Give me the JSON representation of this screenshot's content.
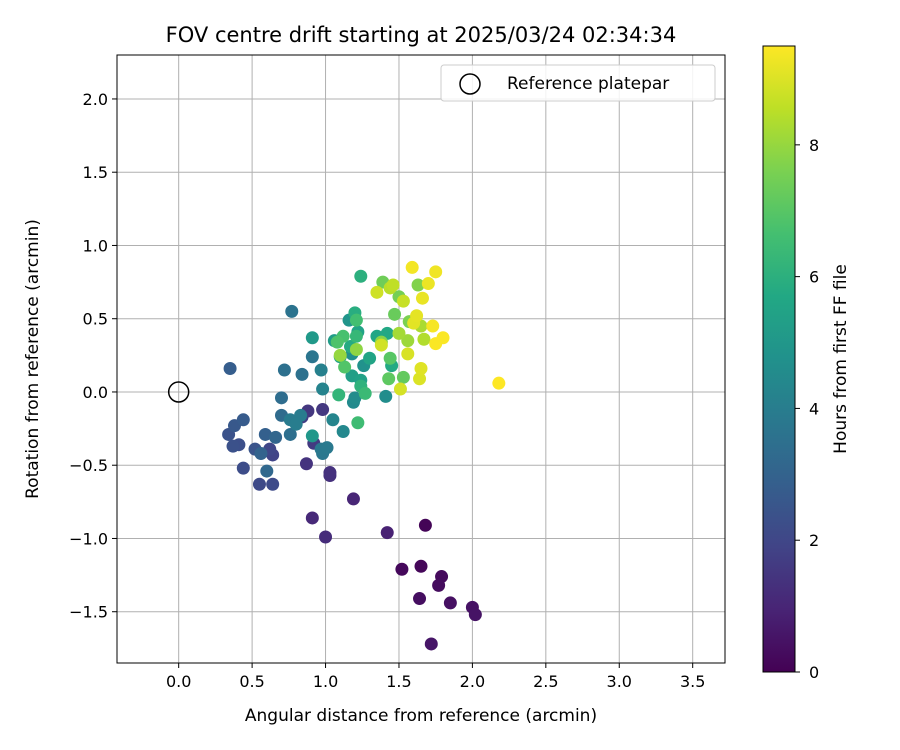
{
  "chart_data": {
    "type": "scatter",
    "title": "FOV centre drift starting at 2025/03/24 02:34:34",
    "xlabel": "Angular distance from reference (arcmin)",
    "ylabel": "Rotation from reference (arcmin)",
    "xlim": [
      -0.42,
      3.72
    ],
    "ylim": [
      -1.85,
      2.3
    ],
    "xticks": [
      "0.0",
      "0.5",
      "1.0",
      "1.5",
      "2.0",
      "2.5",
      "3.0",
      "3.5"
    ],
    "yticks": [
      "2.0",
      "1.5",
      "1.0",
      "0.5",
      "0.0",
      "−0.5",
      "−1.0",
      "−1.5"
    ],
    "grid": true,
    "legend": {
      "placement": "upper right",
      "entries": [
        "Reference platepar"
      ]
    },
    "reference_point": {
      "x": 0.0,
      "y": 0.0,
      "label": "Reference platepar"
    },
    "colorbar": {
      "label": "Hours from first FF file",
      "range": [
        0,
        9.5
      ],
      "ticks": [
        "0",
        "2",
        "4",
        "6",
        "8"
      ],
      "colormap": "viridis"
    },
    "points": [
      {
        "x": 1.68,
        "y": -0.91,
        "t": 0.1
      },
      {
        "x": 1.65,
        "y": -1.19,
        "t": 0.15
      },
      {
        "x": 1.52,
        "y": -1.21,
        "t": 0.2
      },
      {
        "x": 1.79,
        "y": -1.26,
        "t": 0.25
      },
      {
        "x": 1.77,
        "y": -1.32,
        "t": 0.3
      },
      {
        "x": 1.64,
        "y": -1.41,
        "t": 0.35
      },
      {
        "x": 1.85,
        "y": -1.44,
        "t": 0.4
      },
      {
        "x": 2.0,
        "y": -1.47,
        "t": 0.45
      },
      {
        "x": 2.02,
        "y": -1.52,
        "t": 0.5
      },
      {
        "x": 1.72,
        "y": -1.72,
        "t": 0.55
      },
      {
        "x": 1.42,
        "y": -0.96,
        "t": 0.9
      },
      {
        "x": 1.19,
        "y": -0.73,
        "t": 1.0
      },
      {
        "x": 0.91,
        "y": -0.86,
        "t": 1.1
      },
      {
        "x": 1.0,
        "y": -0.99,
        "t": 1.2
      },
      {
        "x": 1.03,
        "y": -0.57,
        "t": 1.3
      },
      {
        "x": 1.03,
        "y": -0.55,
        "t": 1.35
      },
      {
        "x": 0.87,
        "y": -0.49,
        "t": 1.4
      },
      {
        "x": 0.88,
        "y": -0.13,
        "t": 1.5
      },
      {
        "x": 0.98,
        "y": -0.12,
        "t": 1.55
      },
      {
        "x": 0.92,
        "y": -0.35,
        "t": 1.6
      },
      {
        "x": 0.84,
        "y": -0.17,
        "t": 1.7
      },
      {
        "x": 0.64,
        "y": -0.43,
        "t": 1.9
      },
      {
        "x": 0.62,
        "y": -0.39,
        "t": 2.0
      },
      {
        "x": 0.55,
        "y": -0.63,
        "t": 2.1
      },
      {
        "x": 0.64,
        "y": -0.63,
        "t": 2.15
      },
      {
        "x": 0.44,
        "y": -0.52,
        "t": 2.2
      },
      {
        "x": 0.41,
        "y": -0.36,
        "t": 2.3
      },
      {
        "x": 0.37,
        "y": -0.37,
        "t": 2.35
      },
      {
        "x": 0.34,
        "y": -0.29,
        "t": 2.4
      },
      {
        "x": 0.52,
        "y": -0.39,
        "t": 2.45
      },
      {
        "x": 0.38,
        "y": -0.23,
        "t": 2.6
      },
      {
        "x": 0.44,
        "y": -0.19,
        "t": 2.7
      },
      {
        "x": 0.35,
        "y": 0.16,
        "t": 2.8
      },
      {
        "x": 0.59,
        "y": -0.29,
        "t": 2.9
      },
      {
        "x": 0.56,
        "y": -0.42,
        "t": 3.0
      },
      {
        "x": 0.66,
        "y": -0.31,
        "t": 3.1
      },
      {
        "x": 0.6,
        "y": -0.54,
        "t": 3.2
      },
      {
        "x": 0.7,
        "y": -0.16,
        "t": 3.3
      },
      {
        "x": 0.7,
        "y": -0.04,
        "t": 3.4
      },
      {
        "x": 0.76,
        "y": -0.29,
        "t": 3.45
      },
      {
        "x": 0.72,
        "y": 0.15,
        "t": 3.5
      },
      {
        "x": 0.84,
        "y": 0.12,
        "t": 3.55
      },
      {
        "x": 0.77,
        "y": 0.55,
        "t": 3.6
      },
      {
        "x": 0.91,
        "y": 0.24,
        "t": 3.7
      },
      {
        "x": 0.98,
        "y": -0.42,
        "t": 3.75
      },
      {
        "x": 0.97,
        "y": -0.39,
        "t": 3.8
      },
      {
        "x": 1.01,
        "y": -0.38,
        "t": 3.85
      },
      {
        "x": 0.76,
        "y": -0.19,
        "t": 3.9
      },
      {
        "x": 0.83,
        "y": -0.16,
        "t": 3.95
      },
      {
        "x": 0.8,
        "y": -0.22,
        "t": 4.0
      },
      {
        "x": 0.97,
        "y": 0.15,
        "t": 4.1
      },
      {
        "x": 0.98,
        "y": 0.02,
        "t": 4.2
      },
      {
        "x": 1.05,
        "y": -0.19,
        "t": 4.3
      },
      {
        "x": 1.12,
        "y": -0.27,
        "t": 4.4
      },
      {
        "x": 1.19,
        "y": -0.07,
        "t": 4.5
      },
      {
        "x": 1.2,
        "y": -0.04,
        "t": 4.55
      },
      {
        "x": 1.41,
        "y": -0.03,
        "t": 4.6
      },
      {
        "x": 1.18,
        "y": 0.26,
        "t": 4.7
      },
      {
        "x": 1.26,
        "y": 0.18,
        "t": 4.8
      },
      {
        "x": 1.16,
        "y": 0.49,
        "t": 4.9
      },
      {
        "x": 0.91,
        "y": -0.3,
        "t": 5.0
      },
      {
        "x": 0.91,
        "y": 0.37,
        "t": 5.1
      },
      {
        "x": 1.06,
        "y": 0.35,
        "t": 5.2
      },
      {
        "x": 1.18,
        "y": 0.11,
        "t": 5.3
      },
      {
        "x": 1.24,
        "y": 0.08,
        "t": 5.4
      },
      {
        "x": 1.1,
        "y": 0.24,
        "t": 5.45
      },
      {
        "x": 1.22,
        "y": 0.41,
        "t": 5.5
      },
      {
        "x": 1.3,
        "y": 0.23,
        "t": 5.55
      },
      {
        "x": 1.35,
        "y": 0.38,
        "t": 5.6
      },
      {
        "x": 1.42,
        "y": 0.4,
        "t": 5.7
      },
      {
        "x": 1.45,
        "y": 0.18,
        "t": 5.75
      },
      {
        "x": 1.17,
        "y": 0.31,
        "t": 5.8
      },
      {
        "x": 1.2,
        "y": 0.54,
        "t": 5.9
      },
      {
        "x": 1.24,
        "y": 0.79,
        "t": 6.0
      },
      {
        "x": 1.24,
        "y": 0.04,
        "t": 6.1
      },
      {
        "x": 1.09,
        "y": -0.02,
        "t": 6.2
      },
      {
        "x": 1.21,
        "y": 0.38,
        "t": 6.3
      },
      {
        "x": 1.27,
        "y": -0.01,
        "t": 6.4
      },
      {
        "x": 1.22,
        "y": -0.21,
        "t": 6.5
      },
      {
        "x": 1.21,
        "y": 0.49,
        "t": 6.6
      },
      {
        "x": 1.12,
        "y": 0.38,
        "t": 6.7
      },
      {
        "x": 1.08,
        "y": 0.34,
        "t": 6.8
      },
      {
        "x": 1.13,
        "y": 0.17,
        "t": 6.9
      },
      {
        "x": 1.44,
        "y": 0.23,
        "t": 7.0
      },
      {
        "x": 1.43,
        "y": 0.09,
        "t": 7.1
      },
      {
        "x": 1.53,
        "y": 0.1,
        "t": 7.2
      },
      {
        "x": 1.47,
        "y": 0.53,
        "t": 7.3
      },
      {
        "x": 1.39,
        "y": 0.75,
        "t": 7.4
      },
      {
        "x": 1.5,
        "y": 0.65,
        "t": 7.5
      },
      {
        "x": 1.57,
        "y": 0.48,
        "t": 7.6
      },
      {
        "x": 1.63,
        "y": 0.73,
        "t": 7.7
      },
      {
        "x": 1.38,
        "y": 0.34,
        "t": 7.8
      },
      {
        "x": 1.21,
        "y": 0.29,
        "t": 7.9
      },
      {
        "x": 1.1,
        "y": 0.25,
        "t": 8.0
      },
      {
        "x": 1.56,
        "y": 0.35,
        "t": 8.1
      },
      {
        "x": 1.5,
        "y": 0.4,
        "t": 8.2
      },
      {
        "x": 1.65,
        "y": 0.45,
        "t": 8.3
      },
      {
        "x": 1.67,
        "y": 0.36,
        "t": 8.4
      },
      {
        "x": 1.44,
        "y": 0.71,
        "t": 8.5
      },
      {
        "x": 1.46,
        "y": 0.73,
        "t": 8.6
      },
      {
        "x": 1.53,
        "y": 0.62,
        "t": 8.7
      },
      {
        "x": 1.35,
        "y": 0.68,
        "t": 8.8
      },
      {
        "x": 1.38,
        "y": 0.32,
        "t": 8.85
      },
      {
        "x": 1.51,
        "y": 0.02,
        "t": 8.9
      },
      {
        "x": 1.56,
        "y": 0.26,
        "t": 8.95
      },
      {
        "x": 1.64,
        "y": 0.09,
        "t": 9.0
      },
      {
        "x": 1.65,
        "y": 0.16,
        "t": 9.05
      },
      {
        "x": 1.6,
        "y": 0.47,
        "t": 9.1
      },
      {
        "x": 1.62,
        "y": 0.52,
        "t": 9.15
      },
      {
        "x": 1.66,
        "y": 0.64,
        "t": 9.2
      },
      {
        "x": 1.7,
        "y": 0.74,
        "t": 9.25
      },
      {
        "x": 1.75,
        "y": 0.82,
        "t": 9.3
      },
      {
        "x": 1.59,
        "y": 0.85,
        "t": 9.35
      },
      {
        "x": 1.73,
        "y": 0.45,
        "t": 9.4
      },
      {
        "x": 1.75,
        "y": 0.33,
        "t": 9.45
      },
      {
        "x": 1.8,
        "y": 0.37,
        "t": 9.45
      },
      {
        "x": 2.18,
        "y": 0.06,
        "t": 9.5
      }
    ]
  }
}
